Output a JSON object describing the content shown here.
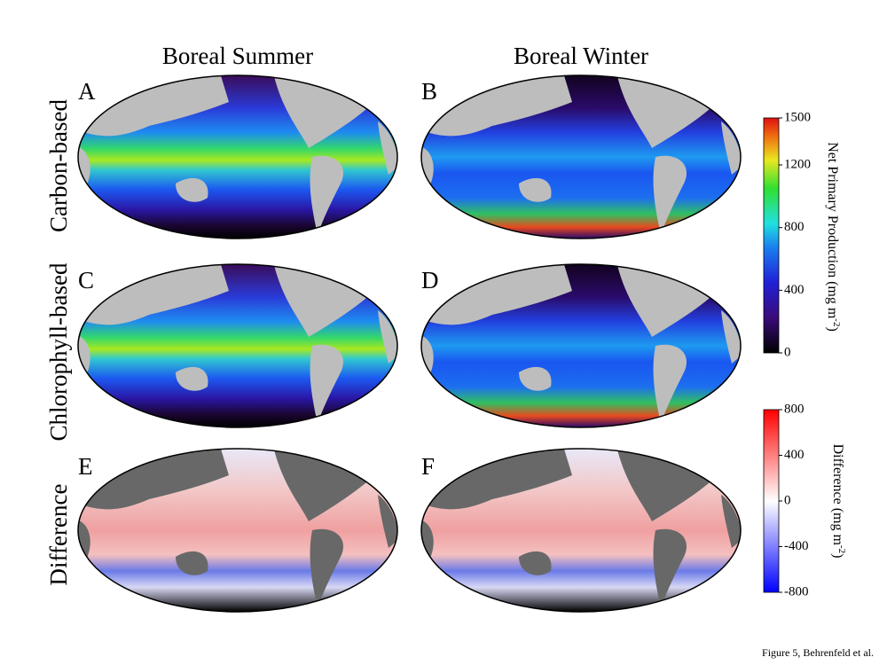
{
  "column_headers": [
    "Boreal Summer",
    "Boreal Winter"
  ],
  "row_labels": [
    "Carbon-based",
    "Chlorophyll-based",
    "Difference"
  ],
  "panels": [
    "A",
    "B",
    "C",
    "D",
    "E",
    "F"
  ],
  "colorbars": [
    {
      "label": {
        "text": "Net Primary Production (mg m",
        "sup": "-2",
        "end": ")"
      },
      "ticks": [
        1500,
        1200,
        800,
        400,
        0
      ]
    },
    {
      "label": {
        "text": "Difference (mg m",
        "sup": "-2",
        "end": ")"
      },
      "ticks": [
        800,
        400,
        0,
        -400,
        -800
      ]
    }
  ],
  "caption": "Figure 5, Behrenfeld et al."
}
